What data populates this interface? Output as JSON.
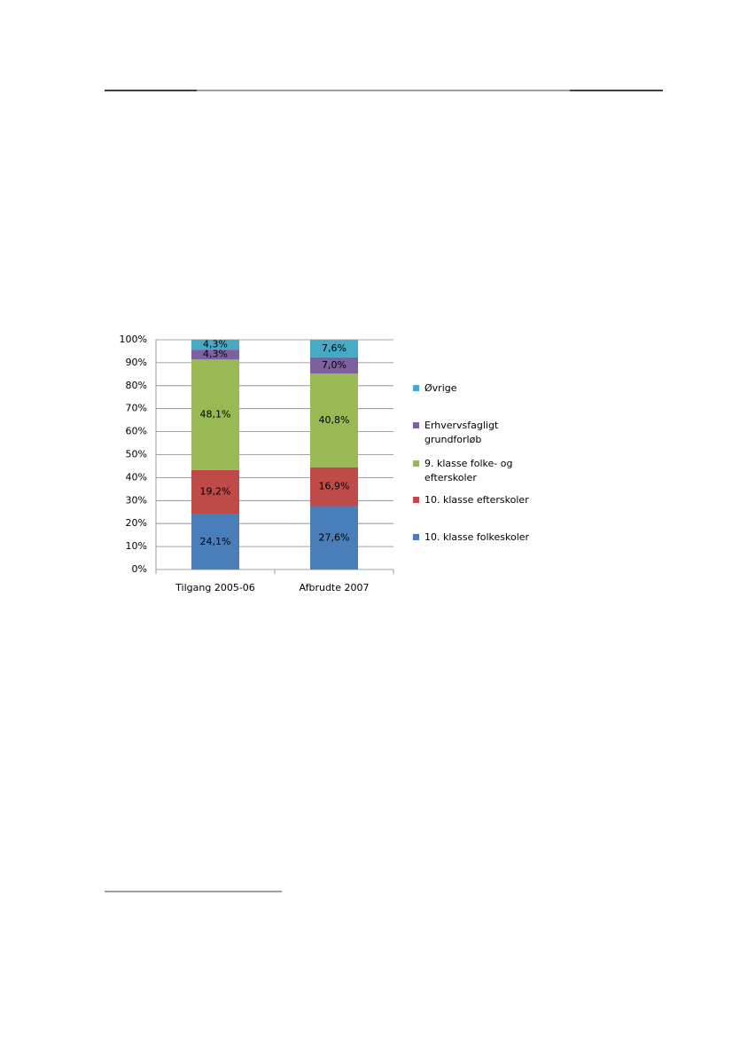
{
  "chart_data": {
    "type": "stacked-bar",
    "categories": [
      "Tilgang 2005-06",
      "Afbrudte 2007"
    ],
    "series": [
      {
        "name": "10. klasse folkeskoler",
        "color": "#4a7ebb",
        "values": [
          24.1,
          27.6
        ],
        "value_labels": [
          "24,1%",
          "27,6%"
        ]
      },
      {
        "name": "10. klasse efterskoler",
        "color": "#be4b48",
        "values": [
          19.2,
          16.9
        ],
        "value_labels": [
          "19,2%",
          "16,9%"
        ]
      },
      {
        "name": "9. klasse folke- og efterskoler",
        "color": "#98b954",
        "values": [
          48.1,
          40.8
        ],
        "value_labels": [
          "48,1%",
          "40,8%"
        ]
      },
      {
        "name": "Erhvervsfagligt grundforløb",
        "color": "#7d60a0",
        "values": [
          4.3,
          7.0
        ],
        "value_labels": [
          "4,3%",
          "7,0%"
        ]
      },
      {
        "name": "Øvrige",
        "color": "#46aac5",
        "values": [
          4.3,
          7.6
        ],
        "value_labels": [
          "4,3%",
          "7,6%"
        ]
      }
    ],
    "ylim": [
      0,
      100
    ],
    "yticks": [
      {
        "value": 0,
        "label": "0%"
      },
      {
        "value": 10,
        "label": "10%"
      },
      {
        "value": 20,
        "label": "20%"
      },
      {
        "value": 30,
        "label": "30%"
      },
      {
        "value": 40,
        "label": "40%"
      },
      {
        "value": 50,
        "label": "50%"
      },
      {
        "value": 60,
        "label": "60%"
      },
      {
        "value": 70,
        "label": "70%"
      },
      {
        "value": 80,
        "label": "80%"
      },
      {
        "value": 90,
        "label": "90%"
      },
      {
        "value": 100,
        "label": "100%"
      }
    ],
    "grid": true,
    "legend": "right"
  }
}
